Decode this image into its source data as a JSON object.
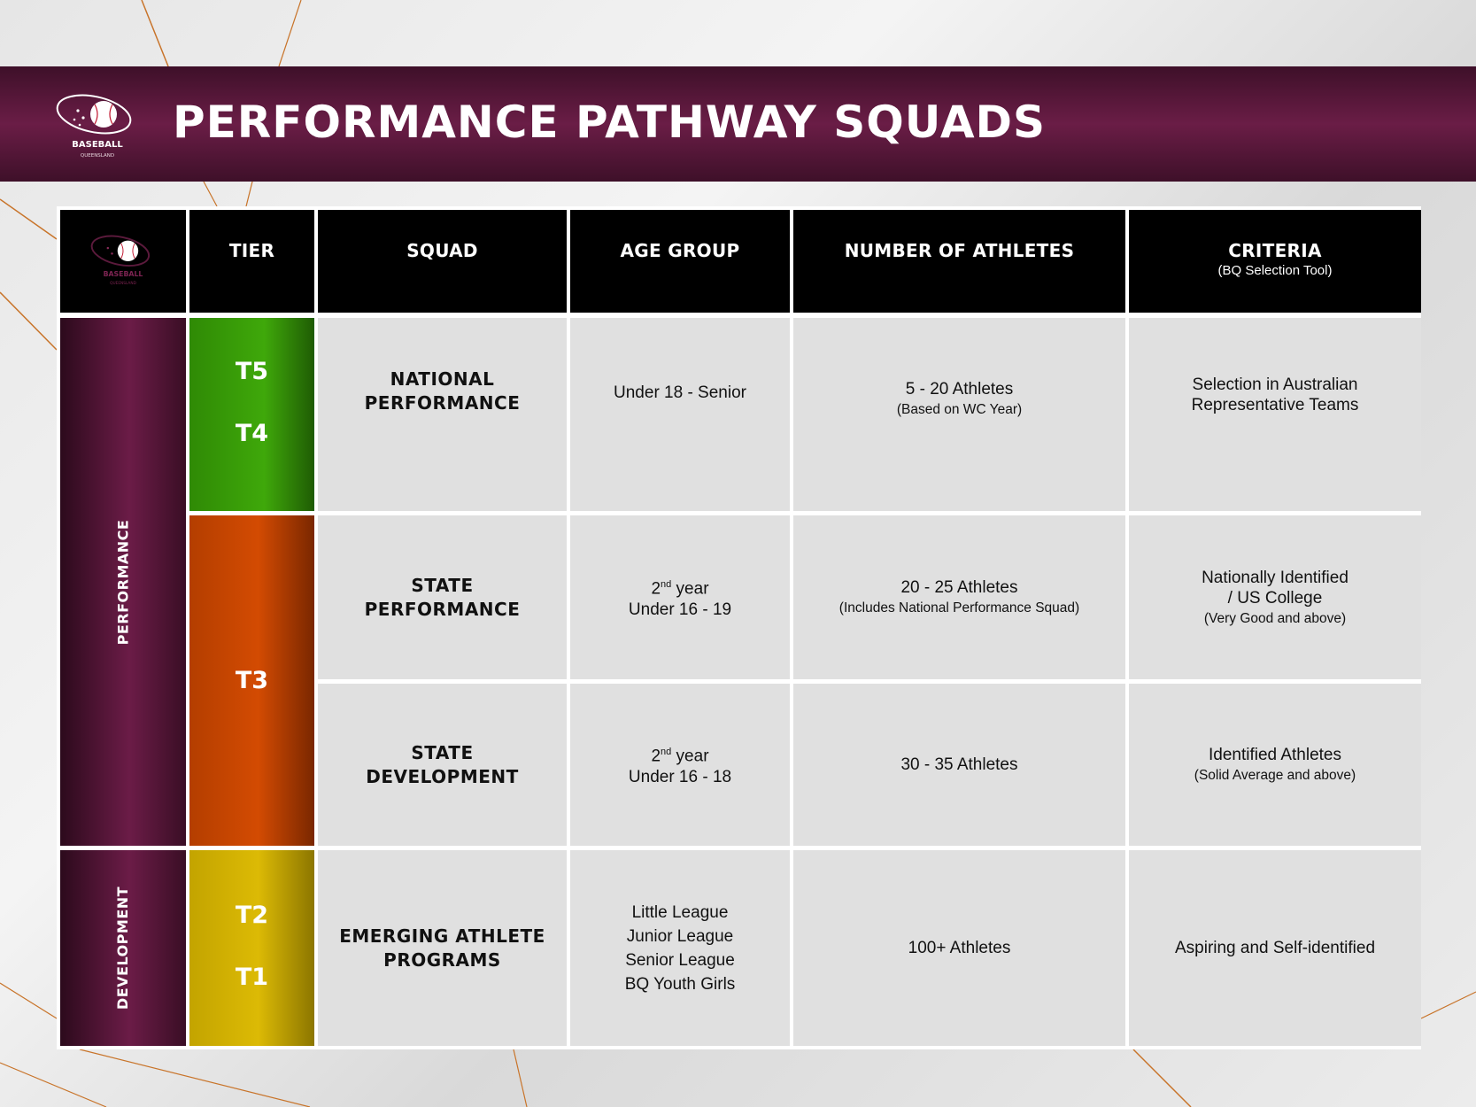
{
  "banner": {
    "title": "PERFORMANCE PATHWAY SQUADS",
    "logo_text": "BASEBALL",
    "logo_subtext": "QUEENSLAND"
  },
  "table": {
    "headers": {
      "tier": "TIER",
      "squad": "SQUAD",
      "age_group": "AGE GROUP",
      "athletes": "NUMBER OF ATHLETES",
      "criteria": "CRITERIA",
      "criteria_sub": "(BQ Selection Tool)"
    },
    "categories": {
      "performance": "PERFORMANCE",
      "development": "DEVELOPMENT"
    },
    "tiers": {
      "t5": "T5",
      "t4": "T4",
      "t3": "T3",
      "t2": "T2",
      "t1": "T1"
    },
    "rows": [
      {
        "squad_line1": "NATIONAL",
        "squad_line2": "PERFORMANCE",
        "age": "Under 18 - Senior",
        "athletes": "5 - 20 Athletes",
        "athletes_note": "(Based on WC Year)",
        "criteria_line1": "Selection in Australian",
        "criteria_line2": "Representative Teams"
      },
      {
        "squad_line1": "STATE",
        "squad_line2": "PERFORMANCE",
        "age_prefix": "2",
        "age_sup": "nd",
        "age_suffix": " year",
        "age_line2": "Under 16 - 19",
        "athletes": "20 - 25 Athletes",
        "athletes_note": "(Includes National Performance Squad)",
        "criteria_line1": "Nationally Identified",
        "criteria_line2": "/ US College",
        "criteria_note": "(Very Good and above)"
      },
      {
        "squad_line1": "STATE",
        "squad_line2": "DEVELOPMENT",
        "age_prefix": "2",
        "age_sup": "nd",
        "age_suffix": " year",
        "age_line2": "Under 16 - 18",
        "athletes": "30 - 35 Athletes",
        "criteria_line1": "Identified Athletes",
        "criteria_note": "(Solid Average and above)"
      },
      {
        "squad_line1": "EMERGING ATHLETE",
        "squad_line2": "PROGRAMS",
        "age_items": [
          "Little League",
          "Junior League",
          "Senior League",
          "BQ Youth Girls"
        ],
        "athletes": "100+ Athletes",
        "criteria_line1": "Aspiring and Self-identified"
      }
    ]
  },
  "colors": {
    "banner": "#5a1a3c",
    "tier_green": "#3fa80a",
    "tier_orange": "#d34b02",
    "tier_yellow": "#dcba05",
    "cell_bg": "#e0e0e0"
  }
}
